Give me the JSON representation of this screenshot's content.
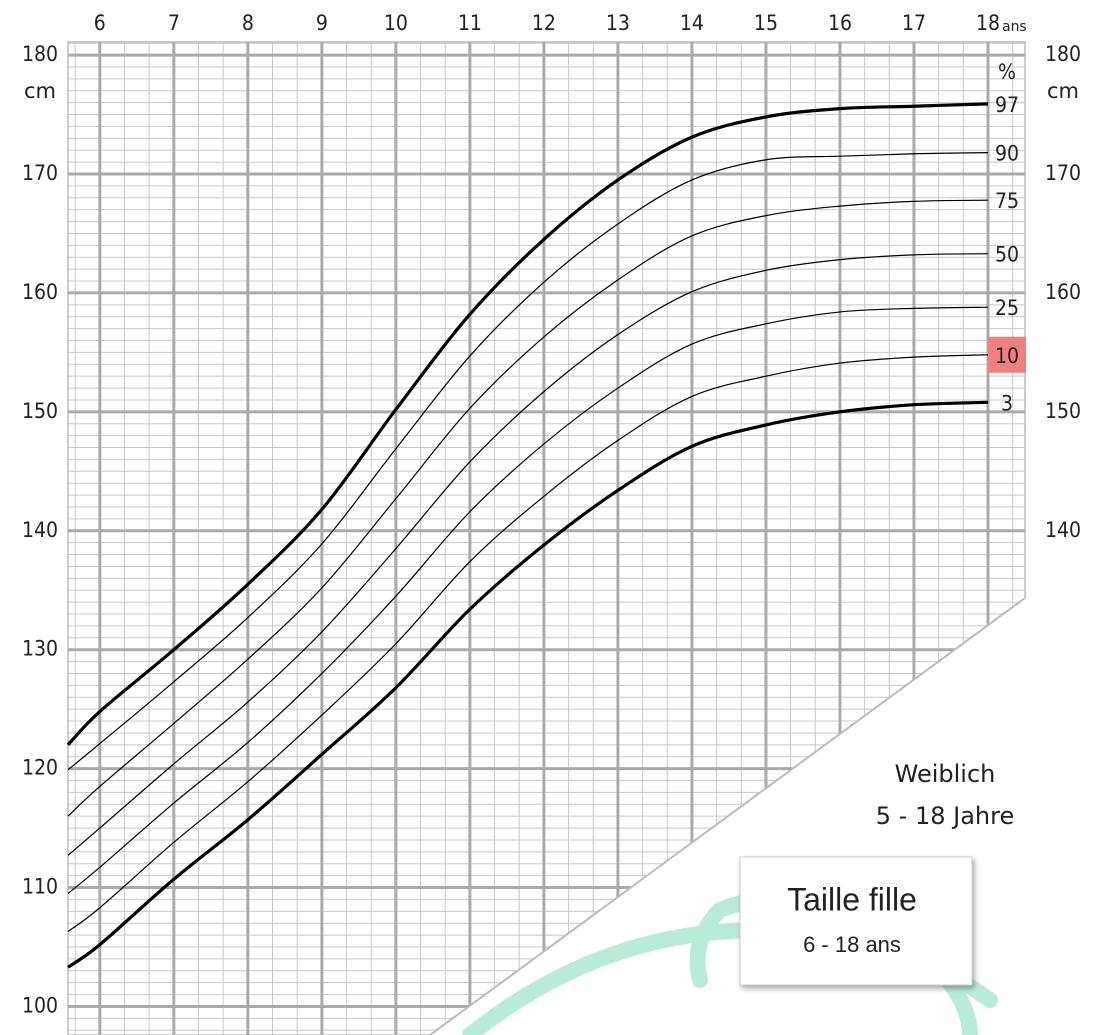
{
  "chart_data": {
    "type": "line",
    "x_label": "ans",
    "y_label": "cm",
    "y2_label": "cm",
    "percent_label": "%",
    "x": [
      5.57,
      6,
      7,
      8,
      9,
      10,
      11,
      12,
      13,
      14,
      15,
      16,
      17,
      18
    ],
    "xlim": [
      5.57,
      18.5
    ],
    "ylim": [
      97.6,
      181.1
    ],
    "y2lim": [
      97.6,
      181.1
    ],
    "xticks": [
      6,
      7,
      8,
      9,
      10,
      11,
      12,
      13,
      14,
      15,
      16,
      17,
      18
    ],
    "yticks": [
      100,
      110,
      120,
      130,
      140,
      150,
      160,
      170,
      180
    ],
    "y2ticks": [
      140,
      150,
      160,
      170,
      180
    ],
    "grid": true,
    "series": [
      {
        "name": "97",
        "color": "#000000",
        "linewidth": 3.2,
        "values": [
          122.0,
          124.8,
          130.0,
          135.5,
          141.8,
          150.2,
          158.2,
          164.5,
          169.5,
          173.1,
          174.8,
          175.5,
          175.7,
          175.9
        ]
      },
      {
        "name": "90",
        "color": "#000000",
        "linewidth": 1.2,
        "values": [
          119.9,
          122.1,
          127.3,
          132.7,
          138.9,
          146.9,
          154.7,
          160.9,
          165.8,
          169.5,
          171.2,
          171.5,
          171.7,
          171.8
        ]
      },
      {
        "name": "75",
        "color": "#000000",
        "linewidth": 1.2,
        "values": [
          116.0,
          118.5,
          123.8,
          129.2,
          135.2,
          142.7,
          150.3,
          156.3,
          161.1,
          164.8,
          166.5,
          167.3,
          167.7,
          167.8
        ]
      },
      {
        "name": "50",
        "color": "#000000",
        "linewidth": 1.2,
        "values": [
          112.7,
          115.0,
          120.4,
          125.6,
          131.5,
          138.5,
          145.8,
          151.7,
          156.5,
          160.1,
          161.9,
          162.8,
          163.2,
          163.3
        ]
      },
      {
        "name": "25",
        "color": "#000000",
        "linewidth": 1.2,
        "values": [
          109.5,
          111.7,
          117.1,
          122.2,
          128.0,
          134.5,
          141.6,
          147.3,
          152.0,
          155.7,
          157.4,
          158.4,
          158.7,
          158.8
        ]
      },
      {
        "name": "10",
        "color": "#000000",
        "linewidth": 1.2,
        "highlight": true,
        "values": [
          106.3,
          108.3,
          113.8,
          118.9,
          124.5,
          130.5,
          137.4,
          142.9,
          147.6,
          151.3,
          153.0,
          154.1,
          154.6,
          154.8
        ]
      },
      {
        "name": "3",
        "color": "#000000",
        "linewidth": 3.2,
        "values": [
          103.3,
          105.2,
          110.7,
          115.7,
          121.2,
          126.8,
          133.4,
          138.8,
          143.4,
          147.1,
          148.9,
          150.0,
          150.6,
          150.8
        ]
      }
    ],
    "annotations": [
      "Weiblich",
      "5 - 18 Jahre"
    ],
    "label_box": {
      "title": "Taille fille",
      "subtitle": "6 - 18 ans"
    }
  }
}
